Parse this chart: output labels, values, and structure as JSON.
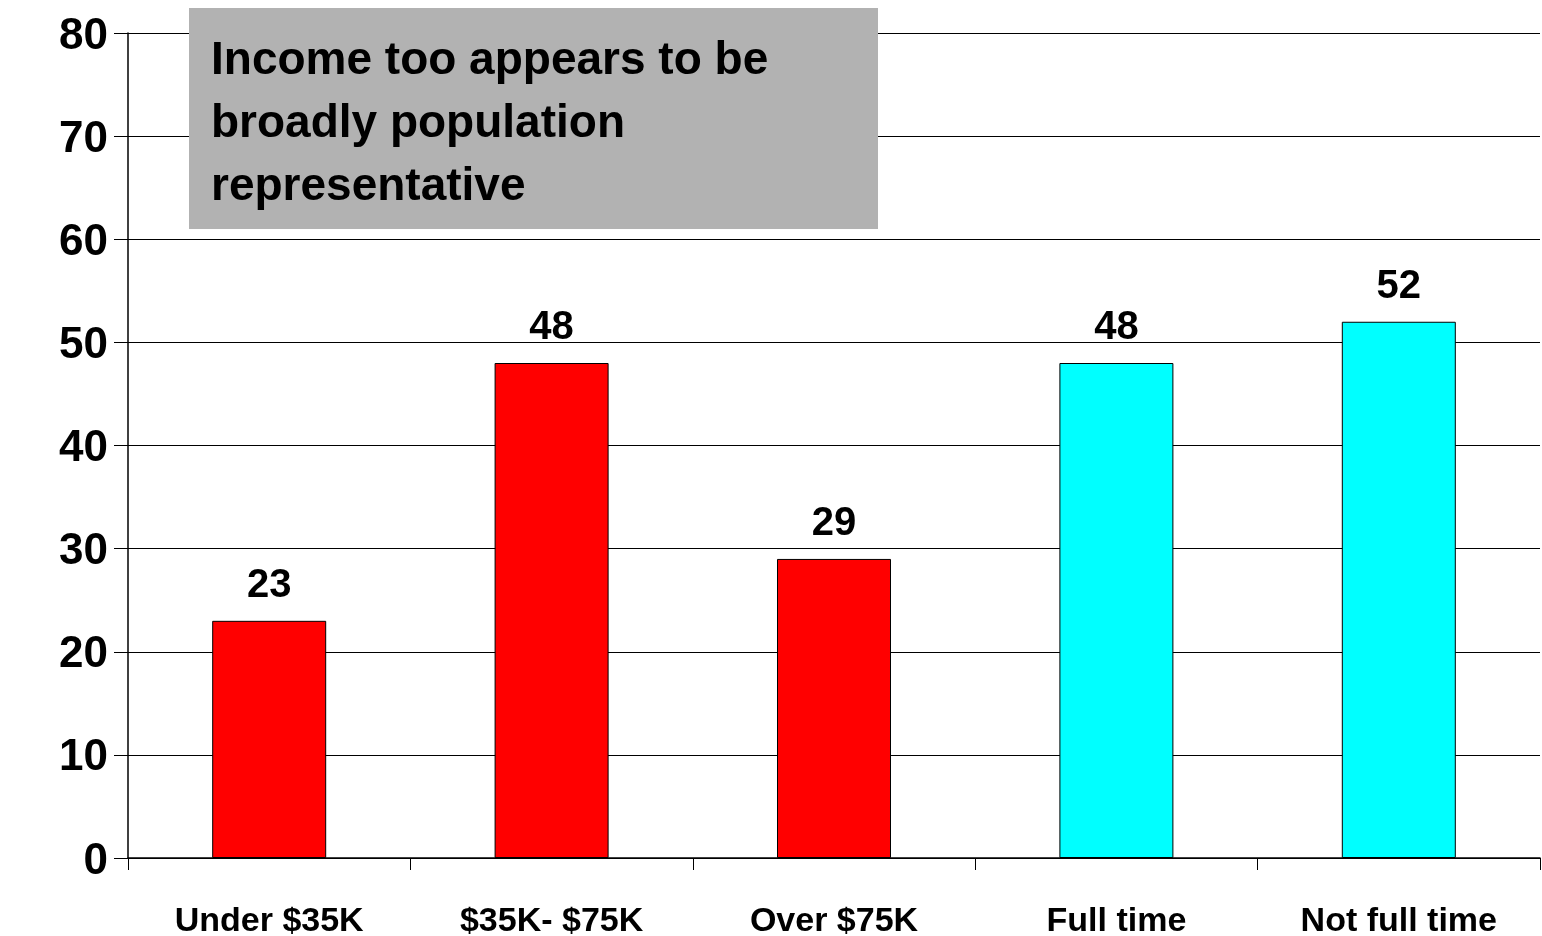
{
  "chart_data": {
    "type": "bar",
    "title": "Income too appears to be\nbroadly population\nrepresentative",
    "categories": [
      "Under $35K",
      "$35K- $75K",
      "Over $75K",
      "Full time",
      "Not full time"
    ],
    "values": [
      23,
      48,
      29,
      48,
      52
    ],
    "colors": [
      "#ff0000",
      "#ff0000",
      "#ff0000",
      "#00ffff",
      "#00ffff"
    ],
    "ylim": [
      0,
      80
    ],
    "yticks": [
      0,
      10,
      20,
      30,
      40,
      50,
      60,
      70,
      80
    ],
    "grid": "y",
    "data_labels": true
  }
}
